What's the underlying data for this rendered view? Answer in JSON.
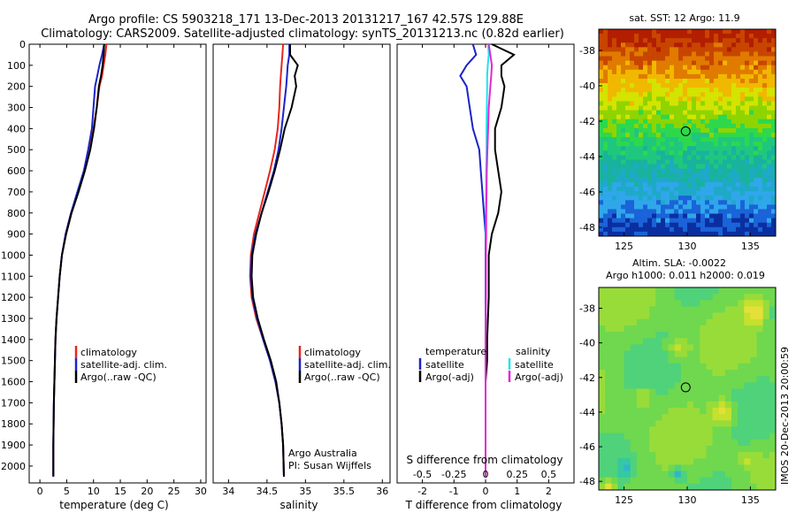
{
  "header": {
    "line1": "Argo profile: CS 5903218_171 13-Dec-2013 20131217_167 42.57S 129.88E",
    "line2": "Climatology: CARS2009. Satellite-adjusted climatology: synTS_20131213.nc (0.82d earlier)"
  },
  "panels": {
    "temperature": {
      "xlabel": "temperature (deg C)",
      "legend": [
        "climatology",
        "satellite-adj. clim.",
        "Argo(..raw -QC)"
      ]
    },
    "salinity": {
      "xlabel": "salinity",
      "legend": [
        "climatology",
        "satellite-adj. clim.",
        "Argo(..raw -QC)"
      ],
      "note": [
        "Argo Australia",
        "PI: Susan Wijffels"
      ]
    },
    "difference": {
      "xlabel": "T difference from climatology",
      "toplabel": "S difference from climatology",
      "legend_temp_title": "temperature",
      "legend_sal_title": "salinity",
      "legend_temp": [
        "satellite",
        "Argo(-adj)"
      ],
      "legend_sal": [
        "satellite",
        "Argo(-adj)"
      ]
    },
    "sst_map": {
      "title": "sat. SST: 12 Argo: 11.9"
    },
    "sla_map": {
      "title1": "Altim. SLA: -0.0022",
      "title2": "Argo h1000: 0.011 h2000: 0.019"
    }
  },
  "footer": {
    "stamp": "IMOS 20-Dec-2013 20:00:59"
  },
  "colors": {
    "climatology": "#e8261d",
    "satellite": "#1a24c8",
    "argo": "#000000",
    "sal_satellite": "#22e3ee",
    "sal_argo": "#e526d6"
  },
  "chart_data": [
    {
      "type": "line",
      "title": "",
      "xlabel": "temperature (deg C)",
      "ylabel": "",
      "xlim": [
        -2,
        31
      ],
      "ylim": [
        2080,
        0
      ],
      "xticks": [
        0,
        5,
        10,
        15,
        20,
        25,
        30
      ],
      "yticks": [
        0,
        100,
        200,
        300,
        400,
        500,
        600,
        700,
        800,
        900,
        1000,
        1100,
        1200,
        1300,
        1400,
        1500,
        1600,
        1700,
        1800,
        1900,
        2000
      ],
      "legend": "lower-right",
      "series": [
        {
          "name": "climatology",
          "color": "#e8261d",
          "x": [
            12.4,
            12.2,
            11.9,
            11.6,
            11.1,
            10.6,
            10.0,
            9.3,
            8.3,
            7.1,
            5.8,
            4.8,
            4.1,
            3.7,
            3.4,
            3.1,
            2.9,
            2.8,
            2.7,
            2.6,
            2.55,
            2.5,
            2.5
          ],
          "y": [
            0,
            50,
            100,
            150,
            200,
            300,
            400,
            500,
            600,
            700,
            800,
            900,
            1000,
            1100,
            1200,
            1300,
            1400,
            1500,
            1600,
            1700,
            1800,
            1900,
            2050
          ]
        },
        {
          "name": "satellite-adj. clim.",
          "color": "#1a24c8",
          "x": [
            12.0,
            11.6,
            11.1,
            10.7,
            10.3,
            10.0,
            9.7,
            9.0,
            8.2,
            7.0,
            5.8,
            4.8,
            4.1,
            3.7,
            3.4,
            3.1,
            2.9,
            2.8,
            2.7,
            2.6,
            2.55,
            2.5,
            2.5
          ],
          "y": [
            0,
            50,
            100,
            150,
            200,
            300,
            400,
            500,
            600,
            700,
            800,
            900,
            1000,
            1100,
            1200,
            1300,
            1400,
            1500,
            1600,
            1700,
            1800,
            1900,
            2050
          ]
        },
        {
          "name": "Argo(..raw -QC)",
          "color": "#000000",
          "x": [
            12.0,
            11.9,
            11.7,
            11.4,
            11.0,
            10.6,
            10.1,
            9.4,
            8.4,
            7.2,
            5.9,
            4.9,
            4.1,
            3.7,
            3.4,
            3.1,
            2.9,
            2.8,
            2.7,
            2.6,
            2.55,
            2.5,
            2.5
          ],
          "y": [
            0,
            50,
            100,
            150,
            200,
            300,
            400,
            500,
            600,
            700,
            800,
            900,
            1000,
            1100,
            1200,
            1300,
            1400,
            1500,
            1600,
            1700,
            1800,
            1900,
            2050
          ]
        }
      ]
    },
    {
      "type": "line",
      "title": "",
      "xlabel": "salinity",
      "ylabel": "",
      "xlim": [
        33.8,
        36.1
      ],
      "ylim": [
        2080,
        0
      ],
      "xticks": [
        34,
        34.5,
        35,
        35.5,
        36
      ],
      "legend": "lower-right",
      "series": [
        {
          "name": "climatology",
          "color": "#e8261d",
          "x": [
            34.71,
            34.7,
            34.69,
            34.68,
            34.67,
            34.66,
            34.64,
            34.6,
            34.54,
            34.47,
            34.4,
            34.33,
            34.29,
            34.28,
            34.3,
            34.36,
            34.45,
            34.54,
            34.61,
            34.66,
            34.69,
            34.71,
            34.72
          ],
          "y": [
            0,
            50,
            100,
            150,
            200,
            300,
            400,
            500,
            600,
            700,
            800,
            900,
            1000,
            1100,
            1200,
            1300,
            1400,
            1500,
            1600,
            1700,
            1800,
            1900,
            2050
          ]
        },
        {
          "name": "satellite-adj. clim.",
          "color": "#1a24c8",
          "x": [
            34.79,
            34.79,
            34.77,
            34.76,
            34.75,
            34.72,
            34.69,
            34.65,
            34.59,
            34.51,
            34.43,
            34.35,
            34.3,
            34.29,
            34.31,
            34.37,
            34.45,
            34.54,
            34.61,
            34.66,
            34.69,
            34.71,
            34.72
          ],
          "y": [
            0,
            50,
            100,
            150,
            200,
            300,
            400,
            500,
            600,
            700,
            800,
            900,
            1000,
            1100,
            1200,
            1300,
            1400,
            1500,
            1600,
            1700,
            1800,
            1900,
            2050
          ]
        },
        {
          "name": "Argo(..raw -QC)",
          "color": "#000000",
          "x": [
            34.8,
            34.8,
            34.9,
            34.86,
            34.88,
            34.82,
            34.73,
            34.67,
            34.6,
            34.52,
            34.43,
            34.36,
            34.31,
            34.3,
            34.32,
            34.38,
            34.46,
            34.55,
            34.62,
            34.66,
            34.69,
            34.71,
            34.72
          ],
          "y": [
            0,
            50,
            100,
            150,
            200,
            300,
            400,
            500,
            600,
            700,
            800,
            900,
            1000,
            1100,
            1200,
            1300,
            1400,
            1500,
            1600,
            1700,
            1800,
            1900,
            2050
          ]
        }
      ]
    },
    {
      "type": "line",
      "title": "",
      "xlabel": "T difference from climatology",
      "ylabel": "",
      "xlim": [
        -2.8,
        2.8
      ],
      "ylim": [
        2080,
        0
      ],
      "xticks": [
        -2,
        -1,
        0,
        1,
        2
      ],
      "x2label": "S difference from climatology",
      "x2ticks": [
        -0.5,
        -0.25,
        0,
        0.25,
        0.5
      ],
      "legend": "lower-center",
      "series": [
        {
          "name": "temperature satellite",
          "color": "#1a24c8",
          "x": [
            -0.4,
            -0.3,
            -0.6,
            -0.8,
            -0.6,
            -0.5,
            -0.4,
            -0.2,
            -0.15,
            -0.1,
            -0.05,
            0,
            0,
            0,
            0,
            0,
            0,
            0,
            0,
            0,
            0,
            0
          ],
          "y": [
            0,
            50,
            100,
            150,
            200,
            300,
            400,
            500,
            600,
            700,
            800,
            900,
            1000,
            1100,
            1200,
            1400,
            1500,
            1600,
            1700,
            1800,
            1900,
            2050
          ]
        },
        {
          "name": "temperature Argo(-adj)",
          "color": "#000000",
          "x": [
            0.2,
            0.9,
            0.5,
            0.5,
            0.6,
            0.5,
            0.3,
            0.3,
            0.4,
            0.5,
            0.4,
            0.2,
            0.1,
            0.1,
            0.1,
            0.05,
            0.05,
            0,
            0,
            0,
            0,
            0
          ],
          "y": [
            0,
            50,
            100,
            150,
            200,
            300,
            400,
            500,
            600,
            700,
            800,
            900,
            1000,
            1100,
            1200,
            1400,
            1500,
            1600,
            1700,
            1800,
            1900,
            2050
          ]
        },
        {
          "name": "salinity satellite",
          "color": "#22e3ee",
          "x": [
            0.08,
            0.1,
            0.07,
            0.05,
            0.05,
            0.04,
            0.03,
            0.03,
            0.02,
            0.02,
            0.01,
            0.01,
            0.01,
            0.01,
            0.01,
            0,
            0,
            0,
            0,
            0,
            0,
            0
          ],
          "y": [
            0,
            50,
            100,
            150,
            200,
            300,
            400,
            500,
            600,
            700,
            800,
            900,
            1000,
            1100,
            1200,
            1400,
            1500,
            1600,
            1700,
            1800,
            1900,
            2050
          ]
        },
        {
          "name": "salinity Argo(-adj)",
          "color": "#e526d6",
          "x": [
            0.1,
            0.15,
            0.2,
            0.18,
            0.15,
            0.1,
            0.08,
            0.06,
            0.04,
            0.03,
            0.02,
            0.02,
            0.01,
            0.01,
            0.01,
            0,
            0,
            0,
            0,
            0,
            0,
            0
          ],
          "y": [
            0,
            50,
            100,
            150,
            200,
            300,
            400,
            500,
            600,
            700,
            800,
            900,
            1000,
            1100,
            1200,
            1400,
            1500,
            1600,
            1700,
            1800,
            1900,
            2050
          ]
        }
      ]
    },
    {
      "type": "heatmap",
      "title": "sat. SST: 12 Argo: 11.9",
      "xlim": [
        123,
        137
      ],
      "ylim": [
        -48.5,
        -36.8
      ],
      "xticks": [
        125,
        130,
        135
      ],
      "yticks": [
        -38,
        -40,
        -42,
        -44,
        -46,
        -48
      ],
      "marker": {
        "lon": 129.88,
        "lat": -42.57
      },
      "rows_north_to_south_colors": [
        "#b21e00",
        "#c84500",
        "#e07b00",
        "#f0b800",
        "#d4e300",
        "#8fd400",
        "#2ed84c",
        "#1fc77e",
        "#18b39c",
        "#1fa9c8",
        "#2fa7ea",
        "#1b63d8",
        "#0b2fa0"
      ]
    },
    {
      "type": "heatmap",
      "title": "Altim. SLA: -0.0022",
      "subtitle": "Argo h1000: 0.011 h2000: 0.019",
      "xlim": [
        123,
        137
      ],
      "ylim": [
        -48.5,
        -36.8
      ],
      "xticks": [
        125,
        130,
        135
      ],
      "yticks": [
        -38,
        -40,
        -42,
        -44,
        -46,
        -48
      ],
      "marker": {
        "lon": 129.88,
        "lat": -42.57
      }
    }
  ]
}
